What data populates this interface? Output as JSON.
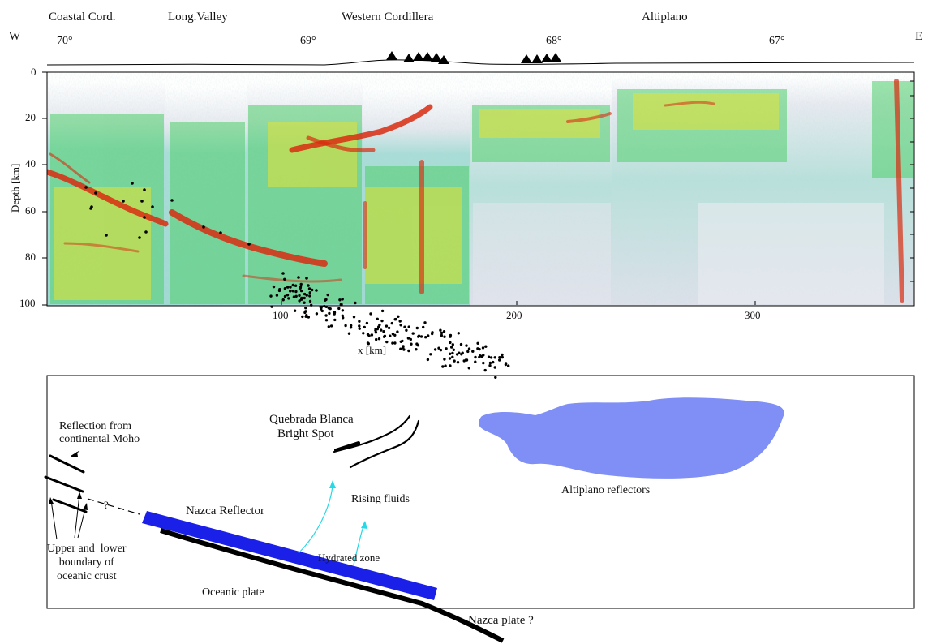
{
  "colors": {
    "high": "#d92b10",
    "mid": "#e8e32b",
    "low": "#3fc96a",
    "base": "#8fd3d0",
    "bg": "#dfe2ea",
    "reflector": "#1b20e8",
    "plateau": "#7f8ff5",
    "fluid": "#27d9e6"
  },
  "profile": {
    "regions": [
      "Coastal Cord.",
      "Long.Valley",
      "Western Cordillera",
      "Altiplano"
    ],
    "west": "W",
    "east": "E",
    "longitudes": [
      "70°",
      "69°",
      "68°",
      "67°"
    ],
    "ylabel": "Depth [km]",
    "yticks": [
      "0",
      "20",
      "40",
      "60",
      "80",
      "100"
    ],
    "xlabel": "x  [km]",
    "xticks": [
      "100",
      "200",
      "300"
    ]
  },
  "sketch": {
    "moho": "Reflection from\ncontinental Moho",
    "qb_line1": "Quebrada Blanca",
    "qb_line2": "Bright Spot",
    "altiplano": "Altiplano reflectors",
    "rising": "Rising fluids",
    "nazca_reflector": "Nazca Reflector",
    "hydrated": "Hydrated zone",
    "boundary": "Upper and  lower\nboundary of\noceanic crust",
    "oceanic": "Oceanic plate",
    "nazca_plate": "Nazca plate ?",
    "question": "?"
  }
}
